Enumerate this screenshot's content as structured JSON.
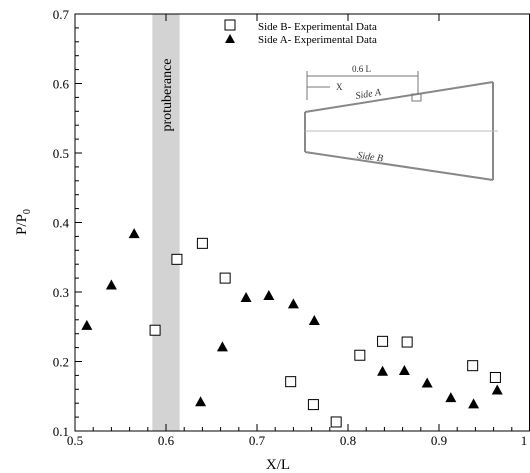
{
  "chart_data": {
    "type": "scatter",
    "xlabel": "X/L",
    "ylabel_main": "P/P",
    "ylabel_sub": "0",
    "xlim": [
      0.5,
      1.0
    ],
    "ylim": [
      0.1,
      0.7
    ],
    "x_ticks": [
      0.5,
      0.6,
      0.7,
      0.8,
      0.9,
      1.0
    ],
    "x_tick_labels": [
      "0.5",
      "0.6",
      "0.7",
      "0.8",
      "0.9",
      "1"
    ],
    "y_ticks": [
      0.1,
      0.2,
      0.3,
      0.4,
      0.5,
      0.6,
      0.7
    ],
    "y_tick_labels": [
      "0.1",
      "0.2",
      "0.3",
      "0.4",
      "0.5",
      "0.6",
      "0.7"
    ],
    "legend_position": "top-right",
    "band": {
      "x_range": [
        0.585,
        0.615
      ],
      "label": "protuberance",
      "color": "#d3d3d3"
    },
    "series": [
      {
        "name": "Side B- Experimental Data",
        "marker": "open-square",
        "points": [
          {
            "x": 0.588,
            "y": 0.245
          },
          {
            "x": 0.612,
            "y": 0.347
          },
          {
            "x": 0.64,
            "y": 0.37
          },
          {
            "x": 0.665,
            "y": 0.32
          },
          {
            "x": 0.737,
            "y": 0.171
          },
          {
            "x": 0.762,
            "y": 0.138
          },
          {
            "x": 0.787,
            "y": 0.113
          },
          {
            "x": 0.813,
            "y": 0.209
          },
          {
            "x": 0.838,
            "y": 0.229
          },
          {
            "x": 0.865,
            "y": 0.228
          },
          {
            "x": 0.937,
            "y": 0.194
          },
          {
            "x": 0.962,
            "y": 0.177
          }
        ]
      },
      {
        "name": "Side A- Experimental Data",
        "marker": "filled-triangle",
        "points": [
          {
            "x": 0.513,
            "y": 0.252
          },
          {
            "x": 0.54,
            "y": 0.31
          },
          {
            "x": 0.565,
            "y": 0.384
          },
          {
            "x": 0.638,
            "y": 0.142
          },
          {
            "x": 0.662,
            "y": 0.221
          },
          {
            "x": 0.688,
            "y": 0.292
          },
          {
            "x": 0.713,
            "y": 0.295
          },
          {
            "x": 0.74,
            "y": 0.283
          },
          {
            "x": 0.763,
            "y": 0.259
          },
          {
            "x": 0.838,
            "y": 0.186
          },
          {
            "x": 0.862,
            "y": 0.187
          },
          {
            "x": 0.887,
            "y": 0.169
          },
          {
            "x": 0.913,
            "y": 0.148
          },
          {
            "x": 0.938,
            "y": 0.139
          },
          {
            "x": 0.964,
            "y": 0.159
          }
        ]
      }
    ],
    "inset": {
      "dimension_label": "0.6 L",
      "x_label": "X",
      "side_a_label": "Side A",
      "side_b_label": "Side B"
    }
  }
}
